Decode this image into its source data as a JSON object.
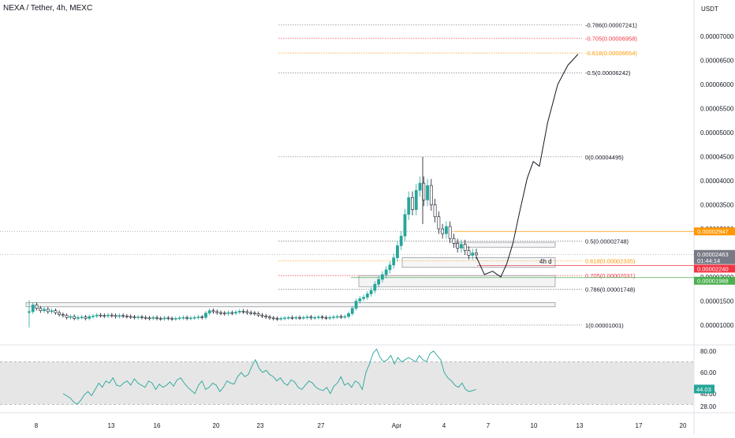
{
  "header": {
    "title": "NEXA / Tether, 4h, MEXC",
    "currency": "USDT"
  },
  "colors": {
    "candle_up": "#26a69a",
    "candle_down": "#131722",
    "fib_gray": "#787b86",
    "fib_red": "#f23645",
    "fib_orange": "#ff9800",
    "price_tag": "#787b86",
    "red_tag": "#f23645",
    "green_tag": "#4caf50",
    "orange_tag": "#ff9800",
    "rsi_line": "#26a69a",
    "rsi_band": "#e6e6e6",
    "rsi_tag": "#26a69a"
  },
  "chart_data": {
    "type": "candlestick",
    "symbol": "NEXA / Tether",
    "interval": "4h",
    "exchange": "MEXC",
    "price_axis": {
      "unit": "USDT",
      "ticks": [
        "0.00007000",
        "0.00006500",
        "0.00006000",
        "0.00005500",
        "0.00005000",
        "0.00004500",
        "0.00004000",
        "0.00003500",
        "0.00003000",
        "0.00002500",
        "0.00002000",
        "0.00001500",
        "0.00001000"
      ]
    },
    "time_axis": {
      "ticks": [
        "8",
        "13",
        "16",
        "20",
        "23",
        "27",
        "Apr",
        "4",
        "7",
        "10",
        "13",
        "17",
        "20"
      ]
    },
    "fib_levels": [
      {
        "label": "-0.786(0.00007241)",
        "price": 7.241e-05,
        "color": "gray"
      },
      {
        "label": "-0.705(0.00006958)",
        "price": 6.958e-05,
        "color": "red"
      },
      {
        "label": "-0.618(0.00006654)",
        "price": 6.654e-05,
        "color": "orange"
      },
      {
        "label": "-0.5(0.00006242)",
        "price": 6.242e-05,
        "color": "gray"
      },
      {
        "label": "0(0.00004495)",
        "price": 4.495e-05,
        "color": "gray"
      },
      {
        "label": "0.5(0.00002748)",
        "price": 2.748e-05,
        "color": "gray"
      },
      {
        "label": "0.618(0.00002335)",
        "price": 2.335e-05,
        "color": "orange"
      },
      {
        "label": "0.705(0.00002031)",
        "price": 2.031e-05,
        "color": "red"
      },
      {
        "label": "0.786(0.00001748)",
        "price": 1.748e-05,
        "color": "gray"
      },
      {
        "label": "1(0.00001001)",
        "price": 1.001e-05,
        "color": "gray"
      }
    ],
    "price_tags": [
      {
        "label": "0.00002947",
        "price": 2.947e-05,
        "color": "orange",
        "sub": ""
      },
      {
        "label": "0.00002463",
        "price": 2.463e-05,
        "color": "gray",
        "sub": "01:44:14"
      },
      {
        "label": "0.00002240",
        "price": 2.24e-05,
        "color": "red",
        "sub": ""
      },
      {
        "label": "0.00001988",
        "price": 1.988e-05,
        "color": "green",
        "sub": ""
      }
    ],
    "annotations": [
      {
        "text": "4h d"
      }
    ],
    "candles_close": [
      1.28e-05,
      1.42e-05,
      1.35e-05,
      1.3e-05,
      1.33e-05,
      1.28e-05,
      1.3e-05,
      1.26e-05,
      1.22e-05,
      1.2e-05,
      1.16e-05,
      1.18e-05,
      1.14e-05,
      1.16e-05,
      1.17e-05,
      1.14e-05,
      1.18e-05,
      1.19e-05,
      1.21e-05,
      1.2e-05,
      1.19e-05,
      1.21e-05,
      1.2e-05,
      1.18e-05,
      1.2e-05,
      1.19e-05,
      1.18e-05,
      1.17e-05,
      1.16e-05,
      1.17e-05,
      1.16e-05,
      1.15e-05,
      1.14e-05,
      1.16e-05,
      1.14e-05,
      1.13e-05,
      1.15e-05,
      1.14e-05,
      1.13e-05,
      1.14e-05,
      1.15e-05,
      1.16e-05,
      1.14e-05,
      1.15e-05,
      1.16e-05,
      1.17e-05,
      1.16e-05,
      1.25e-05,
      1.3e-05,
      1.28e-05,
      1.26e-05,
      1.25e-05,
      1.24e-05,
      1.26e-05,
      1.25e-05,
      1.27e-05,
      1.29e-05,
      1.28e-05,
      1.26e-05,
      1.25e-05,
      1.24e-05,
      1.21e-05,
      1.19e-05,
      1.17e-05,
      1.15e-05,
      1.14e-05,
      1.13e-05,
      1.14e-05,
      1.15e-05,
      1.16e-05,
      1.15e-05,
      1.16e-05,
      1.15e-05,
      1.16e-05,
      1.17e-05,
      1.15e-05,
      1.16e-05,
      1.17e-05,
      1.16e-05,
      1.15e-05,
      1.16e-05,
      1.17e-05,
      1.18e-05,
      1.17e-05,
      1.18e-05,
      1.24e-05,
      1.35e-05,
      1.5e-05,
      1.55e-05,
      1.58e-05,
      1.65e-05,
      1.72e-05,
      1.85e-05,
      1.95e-05,
      2.05e-05,
      2.15e-05,
      2.25e-05,
      2.4e-05,
      2.65e-05,
      2.85e-05,
      3.3e-05,
      3.65e-05,
      3.4e-05,
      3.8e-05,
      3.95e-05,
      3.6e-05,
      3.9e-05,
      3.5e-05,
      3.25e-05,
      3e-05,
      2.9e-05,
      3.05e-05,
      2.8e-05,
      2.7e-05,
      2.6e-05,
      2.68e-05,
      2.55e-05,
      2.45e-05,
      2.5e-05,
      2.46e-05
    ],
    "projection_path": [
      {
        "t": 0.0,
        "p": 2.42e-05
      },
      {
        "t": 0.08,
        "p": 2.05e-05
      },
      {
        "t": 0.16,
        "p": 2.12e-05
      },
      {
        "t": 0.24,
        "p": 2e-05
      },
      {
        "t": 0.3,
        "p": 2.28e-05
      },
      {
        "t": 0.36,
        "p": 2.7e-05
      },
      {
        "t": 0.42,
        "p": 3.3e-05
      },
      {
        "t": 0.5,
        "p": 4.05e-05
      },
      {
        "t": 0.56,
        "p": 4.4e-05
      },
      {
        "t": 0.62,
        "p": 4.3e-05
      },
      {
        "t": 0.7,
        "p": 5.2e-05
      },
      {
        "t": 0.8,
        "p": 6e-05
      },
      {
        "t": 0.9,
        "p": 6.4e-05
      },
      {
        "t": 1.0,
        "p": 6.63e-05
      }
    ],
    "rsi": {
      "ticks": [
        "80.00",
        "60.00",
        "40.00",
        "28.00"
      ],
      "current": "44.03",
      "values": [
        40,
        38,
        36,
        32,
        30,
        34,
        39,
        42,
        38,
        44,
        50,
        46,
        52,
        50,
        55,
        48,
        47,
        50,
        52,
        48,
        54,
        50,
        48,
        46,
        52,
        50,
        44,
        49,
        46,
        48,
        51,
        47,
        53,
        55,
        50,
        46,
        43,
        40,
        48,
        52,
        44,
        46,
        50,
        48,
        42,
        46,
        52,
        50,
        49,
        56,
        60,
        56,
        58,
        66,
        72,
        64,
        60,
        62,
        58,
        56,
        52,
        55,
        50,
        48,
        53,
        51,
        46,
        44,
        48,
        52,
        50,
        46,
        44,
        43,
        46,
        40,
        47,
        50,
        56,
        48,
        50,
        46,
        52,
        50,
        44,
        60,
        68,
        78,
        82,
        74,
        70,
        72,
        76,
        68,
        74,
        70,
        72,
        74,
        72,
        70,
        76,
        72,
        70,
        78,
        80,
        76,
        72,
        60,
        55,
        52,
        48,
        46,
        50,
        44,
        42,
        43,
        44
      ],
      "title": "NEXA / Tether, 4h, MEXC",
      "xlabel": "",
      "ylabel": ""
    }
  }
}
